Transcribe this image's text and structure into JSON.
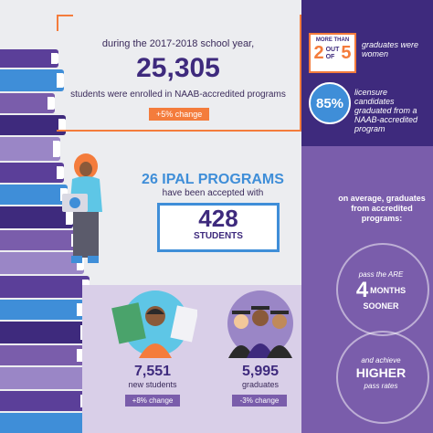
{
  "enrollment": {
    "intro": "during the 2017-2018 school year,",
    "count": "25,305",
    "caption": "students were enrolled in NAAB-accredited programs",
    "change": "+5% change"
  },
  "women_stat": {
    "more_than": "MORE THAN",
    "two": "2",
    "out": "OUT",
    "of": "OF",
    "five": "5",
    "text": "graduates were women"
  },
  "licensure_stat": {
    "percent": "85%",
    "text": "licensure candidates graduated from a NAAB-accredited program"
  },
  "ipal": {
    "title": "26 IPAL PROGRAMS",
    "subtitle": "have been accepted with",
    "students_count": "428",
    "students_label": "STUDENTS"
  },
  "new_students": {
    "count": "7,551",
    "label": "new students",
    "change": "+8% change"
  },
  "graduates": {
    "count": "5,995",
    "label": "graduates",
    "change": "-3% change"
  },
  "outcomes": {
    "intro": "on average, graduates from accredited programs:",
    "are_pre": "pass the ARE",
    "months_num": "4",
    "months_label": "MONTHS",
    "sooner": "SOONER",
    "achieve": "and achieve",
    "higher": "HIGHER",
    "pass_rates": "pass rates"
  },
  "colors": {
    "navy": "#3e2a7d",
    "purple": "#7a5dab",
    "orange": "#f47c3c",
    "blue": "#3f8ed8"
  }
}
